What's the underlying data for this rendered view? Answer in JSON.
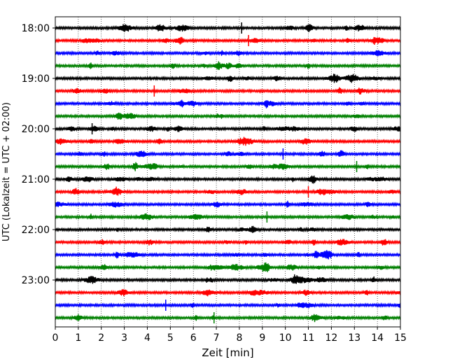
{
  "chart_data": {
    "type": "line",
    "title": "",
    "xlabel": "Zeit  [min]",
    "ylabel": "UTC (Lokalzeit = UTC + 02:00)",
    "xlim": [
      0,
      15
    ],
    "x_ticks": [
      "0",
      "1",
      "2",
      "3",
      "4",
      "5",
      "6",
      "7",
      "8",
      "9",
      "10",
      "11",
      "12",
      "13",
      "14",
      "15"
    ],
    "y_ticks": [
      "18:00",
      "19:00",
      "20:00",
      "21:00",
      "22:00",
      "23:00"
    ],
    "row_interval_min": 15,
    "rows_start": "18:00",
    "row_count": 24,
    "colors": [
      "#000000",
      "#ff0000",
      "#0000ff",
      "#008000"
    ],
    "grid": "vertical dotted",
    "events": [
      {
        "row": 0,
        "x": 8.1
      },
      {
        "row": 1,
        "x": 8.4
      },
      {
        "row": 5,
        "x": 4.3
      },
      {
        "row": 8,
        "x": 1.6
      },
      {
        "row": 10,
        "x": 9.9
      },
      {
        "row": 11,
        "x": 13.1
      },
      {
        "row": 13,
        "x": 11.0
      },
      {
        "row": 15,
        "x": 9.2
      },
      {
        "row": 22,
        "x": 4.8
      },
      {
        "row": 23,
        "x": 6.9
      }
    ]
  }
}
